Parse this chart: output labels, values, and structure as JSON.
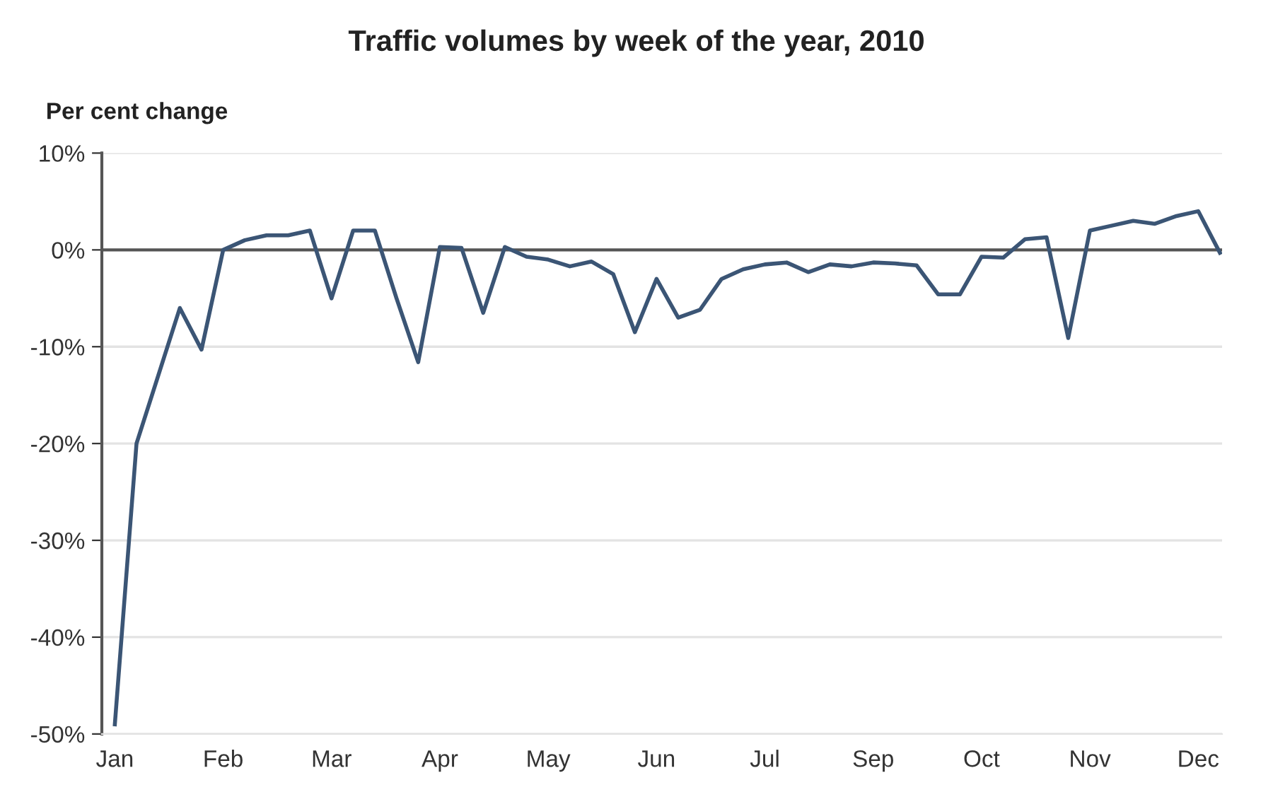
{
  "chart_data": {
    "type": "line",
    "title": "Traffic volumes by week of the year, 2010",
    "ylabel": "Per cent change",
    "categories": [
      "Jan",
      null,
      null,
      null,
      null,
      "Feb",
      null,
      null,
      null,
      null,
      "Mar",
      null,
      null,
      null,
      null,
      "Apr",
      null,
      null,
      null,
      null,
      "May",
      null,
      null,
      null,
      null,
      "Jun",
      null,
      null,
      null,
      null,
      "Jul",
      null,
      null,
      null,
      null,
      "Sep",
      null,
      null,
      null,
      null,
      "Oct",
      null,
      null,
      null,
      null,
      "Nov",
      null,
      null,
      null,
      null,
      "Dec",
      null
    ],
    "series": [
      {
        "color": "#3b5575",
        "values": [
          -49,
          -20,
          -13,
          -6,
          -10.3,
          0,
          1,
          1.5,
          1.5,
          2,
          -5,
          2,
          2,
          -5,
          -11.6,
          0.3,
          0.2,
          -6.5,
          0.3,
          -0.7,
          -1,
          -1.7,
          -1.2,
          -2.5,
          -8.5,
          -3,
          -7,
          -6.2,
          -3,
          -2,
          -1.5,
          -1.3,
          -2.3,
          -1.5,
          -1.7,
          -1.3,
          -1.4,
          -1.6,
          -4.6,
          -4.6,
          -0.7,
          -0.8,
          1.1,
          1.3,
          -9.1,
          2,
          2.5,
          3,
          2.7,
          3.5,
          4,
          -0.3
        ]
      }
    ],
    "ylim": [
      -50,
      10
    ],
    "yticks": [
      {
        "value": 10,
        "label": "10%"
      },
      {
        "value": 0,
        "label": "0%"
      },
      {
        "value": -10,
        "label": "-10%"
      },
      {
        "value": -20,
        "label": "-20%"
      },
      {
        "value": -30,
        "label": "-30%"
      },
      {
        "value": -40,
        "label": "-40%"
      },
      {
        "value": -50,
        "label": "-50%"
      }
    ],
    "ref_lines": [
      {
        "axis": "y",
        "value": 0,
        "color": "#555555"
      }
    ],
    "grid": "y",
    "legend": false,
    "marker": "none",
    "line_style": "solid"
  }
}
